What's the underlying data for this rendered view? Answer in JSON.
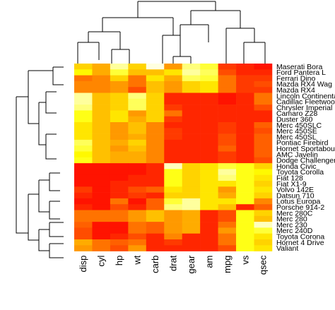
{
  "chart_data": {
    "type": "heatmap",
    "columns": [
      "disp",
      "cyl",
      "hp",
      "wt",
      "carb",
      "drat",
      "gear",
      "am",
      "mpg",
      "vs",
      "qsec"
    ],
    "rows": [
      "Maserati Bora",
      "Ford Pantera L",
      "Ferrari Dino",
      "Mazda RX4 Wag",
      "Mazda RX4",
      "Lincoln Continental",
      "Cadillac Fleetwood",
      "Chrysler Imperial",
      "Camaro Z28",
      "Duster 360",
      "Merc 450SLC",
      "Merc 450SE",
      "Merc 450SL",
      "Pontiac Firebird",
      "Hornet Sportabout",
      "AMC Javelin",
      "Dodge Challenger",
      "Honda Civic",
      "Toyota Corolla",
      "Fiat 128",
      "Fiat X1-9",
      "Volvo 142E",
      "Datsun 710",
      "Lotus Europa",
      "Porsche 914-2",
      "Merc 280C",
      "Merc 280",
      "Merc 230",
      "Merc 240D",
      "Toyota Corona",
      "Hornet 4 Drive",
      "Valiant"
    ],
    "values": [
      [
        0.55,
        0.45,
        0.9,
        0.55,
        1.0,
        0.4,
        0.85,
        0.75,
        0.15,
        0.1,
        0.05
      ],
      [
        0.65,
        0.45,
        0.75,
        0.5,
        0.5,
        0.6,
        0.9,
        0.8,
        0.2,
        0.1,
        0.1
      ],
      [
        0.3,
        0.35,
        0.55,
        0.3,
        0.6,
        0.45,
        0.8,
        0.75,
        0.3,
        0.15,
        0.15
      ],
      [
        0.35,
        0.35,
        0.4,
        0.3,
        0.5,
        0.4,
        0.55,
        0.6,
        0.3,
        0.15,
        0.2
      ],
      [
        0.35,
        0.35,
        0.4,
        0.2,
        0.5,
        0.4,
        0.55,
        0.6,
        0.3,
        0.15,
        0.15
      ],
      [
        0.9,
        0.5,
        0.55,
        0.85,
        0.55,
        0.1,
        0.1,
        0.1,
        0.05,
        0.1,
        0.3
      ],
      [
        0.9,
        0.5,
        0.55,
        0.8,
        0.55,
        0.1,
        0.1,
        0.1,
        0.05,
        0.1,
        0.3
      ],
      [
        0.85,
        0.5,
        0.55,
        0.8,
        0.55,
        0.15,
        0.1,
        0.1,
        0.1,
        0.1,
        0.2
      ],
      [
        0.7,
        0.5,
        0.6,
        0.4,
        0.55,
        0.3,
        0.1,
        0.1,
        0.1,
        0.1,
        0.1
      ],
      [
        0.7,
        0.5,
        0.6,
        0.45,
        0.55,
        0.15,
        0.1,
        0.1,
        0.1,
        0.1,
        0.1
      ],
      [
        0.6,
        0.5,
        0.4,
        0.5,
        0.35,
        0.1,
        0.1,
        0.1,
        0.15,
        0.1,
        0.25
      ],
      [
        0.6,
        0.5,
        0.4,
        0.5,
        0.35,
        0.15,
        0.1,
        0.1,
        0.15,
        0.1,
        0.2
      ],
      [
        0.6,
        0.5,
        0.4,
        0.45,
        0.35,
        0.15,
        0.1,
        0.1,
        0.2,
        0.1,
        0.25
      ],
      [
        0.8,
        0.5,
        0.45,
        0.55,
        0.35,
        0.1,
        0.1,
        0.1,
        0.2,
        0.1,
        0.25
      ],
      [
        0.75,
        0.5,
        0.4,
        0.5,
        0.35,
        0.1,
        0.1,
        0.1,
        0.25,
        0.1,
        0.25
      ],
      [
        0.65,
        0.5,
        0.45,
        0.45,
        0.35,
        0.1,
        0.1,
        0.1,
        0.15,
        0.1,
        0.25
      ],
      [
        0.7,
        0.5,
        0.45,
        0.45,
        0.35,
        0.1,
        0.1,
        0.1,
        0.15,
        0.1,
        0.2
      ],
      [
        0.05,
        0.05,
        0.05,
        0.05,
        0.1,
        0.95,
        0.55,
        0.6,
        0.75,
        0.7,
        0.55
      ],
      [
        0.05,
        0.05,
        0.05,
        0.05,
        0.1,
        0.7,
        0.55,
        0.6,
        0.9,
        0.7,
        0.65
      ],
      [
        0.05,
        0.05,
        0.05,
        0.1,
        0.1,
        0.7,
        0.55,
        0.6,
        0.85,
        0.7,
        0.6
      ],
      [
        0.05,
        0.05,
        0.1,
        0.1,
        0.1,
        0.7,
        0.55,
        0.6,
        0.6,
        0.7,
        0.55
      ],
      [
        0.15,
        0.05,
        0.1,
        0.2,
        0.25,
        0.6,
        0.55,
        0.6,
        0.4,
        0.7,
        0.6
      ],
      [
        0.1,
        0.05,
        0.1,
        0.15,
        0.1,
        0.55,
        0.55,
        0.6,
        0.45,
        0.7,
        0.55
      ],
      [
        0.05,
        0.05,
        0.3,
        0.05,
        0.25,
        0.75,
        0.9,
        0.6,
        0.6,
        0.7,
        0.35
      ],
      [
        0.1,
        0.05,
        0.2,
        0.1,
        0.25,
        0.85,
        0.9,
        0.6,
        0.5,
        0.1,
        0.25
      ],
      [
        0.3,
        0.3,
        0.3,
        0.4,
        0.5,
        0.4,
        0.45,
        0.1,
        0.2,
        0.7,
        0.55
      ],
      [
        0.3,
        0.3,
        0.3,
        0.4,
        0.5,
        0.4,
        0.45,
        0.1,
        0.2,
        0.7,
        0.5
      ],
      [
        0.25,
        0.05,
        0.05,
        0.3,
        0.25,
        0.4,
        0.45,
        0.1,
        0.3,
        0.7,
        0.95
      ],
      [
        0.2,
        0.05,
        0.05,
        0.3,
        0.25,
        0.4,
        0.45,
        0.1,
        0.4,
        0.7,
        0.75
      ],
      [
        0.2,
        0.05,
        0.1,
        0.2,
        0.1,
        0.35,
        0.1,
        0.1,
        0.3,
        0.7,
        0.6
      ],
      [
        0.45,
        0.3,
        0.25,
        0.3,
        0.1,
        0.15,
        0.1,
        0.1,
        0.3,
        0.7,
        0.55
      ],
      [
        0.4,
        0.3,
        0.2,
        0.4,
        0.1,
        0.1,
        0.1,
        0.1,
        0.2,
        0.7,
        0.6
      ]
    ],
    "colormap": [
      "#ff0000",
      "#ff8000",
      "#ffff00",
      "#ffffe0"
    ],
    "legend": "none",
    "row_dendrogram": "left",
    "col_dendrogram": "top"
  }
}
